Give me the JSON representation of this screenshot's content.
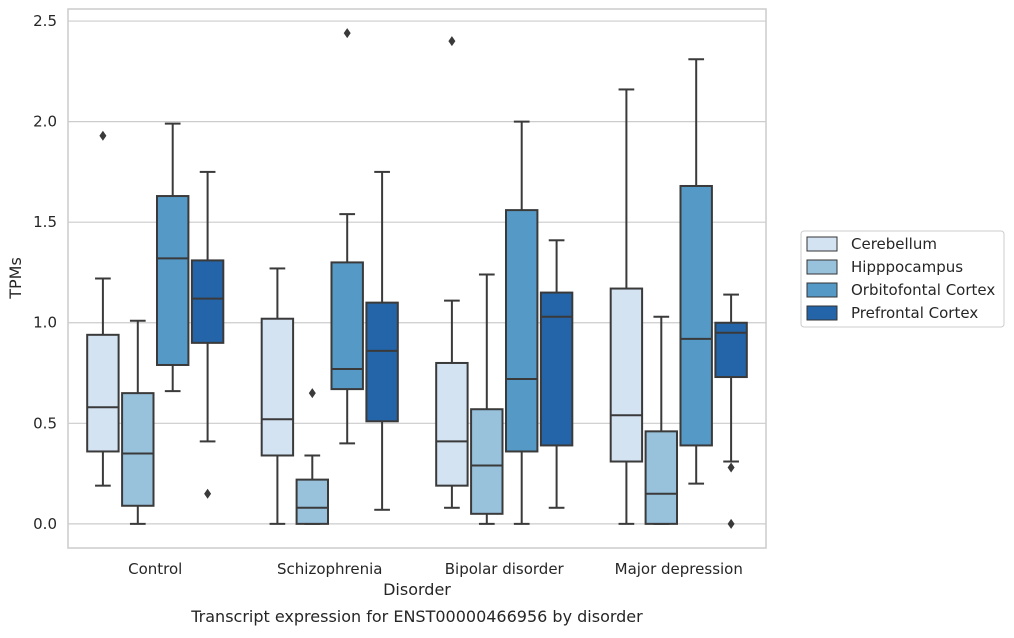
{
  "caption": "Transcript expression for ENST00000466956 by disorder",
  "chart_data": {
    "type": "box",
    "xlabel": "Disorder",
    "ylabel": "TPMs",
    "ylim": [
      -0.12,
      2.56
    ],
    "yticks": [
      "0.0",
      "0.5",
      "1.0",
      "1.5",
      "2.0",
      "2.5"
    ],
    "grid": "horizontal",
    "legend_position": "right",
    "categories": [
      "Control",
      "Schizophrenia",
      "Bipolar disorder",
      "Major depression"
    ],
    "series": [
      {
        "name": "Cerebellum",
        "color": "#d4e3f2",
        "boxes": [
          {
            "whislo": 0.19,
            "q1": 0.36,
            "med": 0.58,
            "q3": 0.94,
            "whishi": 1.22,
            "fliers": [
              1.93
            ]
          },
          {
            "whislo": 0.0,
            "q1": 0.34,
            "med": 0.52,
            "q3": 1.02,
            "whishi": 1.27,
            "fliers": []
          },
          {
            "whislo": 0.08,
            "q1": 0.19,
            "med": 0.41,
            "q3": 0.8,
            "whishi": 1.11,
            "fliers": [
              2.4
            ]
          },
          {
            "whislo": 0.0,
            "q1": 0.31,
            "med": 0.54,
            "q3": 1.17,
            "whishi": 2.16,
            "fliers": []
          }
        ]
      },
      {
        "name": "Hipppocampus",
        "color": "#98c1dc",
        "boxes": [
          {
            "whislo": 0.0,
            "q1": 0.09,
            "med": 0.35,
            "q3": 0.65,
            "whishi": 1.01,
            "fliers": []
          },
          {
            "whislo": 0.0,
            "q1": 0.0,
            "med": 0.08,
            "q3": 0.22,
            "whishi": 0.34,
            "fliers": [
              0.65
            ]
          },
          {
            "whislo": 0.0,
            "q1": 0.05,
            "med": 0.29,
            "q3": 0.57,
            "whishi": 1.24,
            "fliers": []
          },
          {
            "whislo": 0.0,
            "q1": 0.0,
            "med": 0.15,
            "q3": 0.46,
            "whishi": 1.03,
            "fliers": []
          }
        ]
      },
      {
        "name": "Orbitofontal Cortex",
        "color": "#5599c7",
        "boxes": [
          {
            "whislo": 0.66,
            "q1": 0.79,
            "med": 1.32,
            "q3": 1.63,
            "whishi": 1.99,
            "fliers": []
          },
          {
            "whislo": 0.4,
            "q1": 0.67,
            "med": 0.77,
            "q3": 1.3,
            "whishi": 1.54,
            "fliers": [
              2.44
            ]
          },
          {
            "whislo": 0.0,
            "q1": 0.36,
            "med": 0.72,
            "q3": 1.56,
            "whishi": 2.0,
            "fliers": []
          },
          {
            "whislo": 0.2,
            "q1": 0.39,
            "med": 0.92,
            "q3": 1.68,
            "whishi": 2.31,
            "fliers": []
          }
        ]
      },
      {
        "name": "Prefrontal Cortex",
        "color": "#2464a8",
        "boxes": [
          {
            "whislo": 0.41,
            "q1": 0.9,
            "med": 1.12,
            "q3": 1.31,
            "whishi": 1.75,
            "fliers": [
              0.15
            ]
          },
          {
            "whislo": 0.07,
            "q1": 0.51,
            "med": 0.86,
            "q3": 1.1,
            "whishi": 1.75,
            "fliers": []
          },
          {
            "whislo": 0.08,
            "q1": 0.39,
            "med": 1.03,
            "q3": 1.15,
            "whishi": 1.41,
            "fliers": []
          },
          {
            "whislo": 0.31,
            "q1": 0.73,
            "med": 0.95,
            "q3": 1.0,
            "whishi": 1.14,
            "fliers": [
              0.28,
              0.0
            ]
          }
        ]
      }
    ]
  }
}
